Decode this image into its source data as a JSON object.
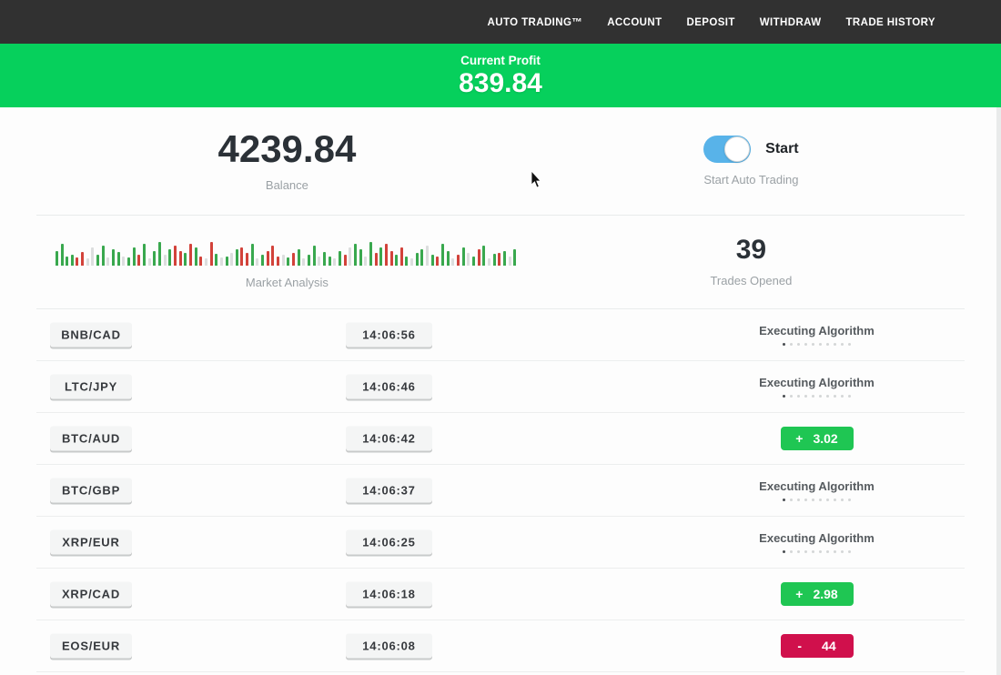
{
  "nav": {
    "items": [
      "AUTO TRADING™",
      "ACCOUNT",
      "DEPOSIT",
      "WITHDRAW",
      "TRADE HISTORY"
    ]
  },
  "banner": {
    "label": "Current Profit",
    "value": "839.84"
  },
  "stats": {
    "balance": {
      "value": "4239.84",
      "label": "Balance"
    },
    "auto_trading": {
      "toggle_state": "on",
      "toggle_label": "Start",
      "caption": "Start Auto Trading"
    },
    "market_analysis": {
      "label": "Market Analysis",
      "bars": [
        "g16",
        "g24",
        "g10",
        "g12",
        "r9",
        "r15",
        "e8",
        "e20",
        "g12",
        "g22",
        "e9",
        "g18",
        "g15",
        "e10",
        "g9",
        "g20",
        "r12",
        "g24",
        "e8",
        "g16",
        "g26",
        "e12",
        "g18",
        "r22",
        "r16",
        "g14",
        "r24",
        "g20",
        "r10",
        "e8",
        "r26",
        "g13",
        "e9",
        "g10",
        "e14",
        "g18",
        "r20",
        "r14",
        "g24",
        "e8",
        "g12",
        "r16",
        "r22",
        "r10",
        "e12",
        "g9",
        "r14",
        "g18",
        "e8",
        "g12",
        "g22",
        "e10",
        "g15",
        "g10",
        "e8",
        "g16",
        "r12",
        "e20",
        "g24",
        "g18",
        "e10",
        "g26",
        "r14",
        "g20",
        "r24",
        "r16",
        "g12",
        "r20",
        "g10",
        "e8",
        "g14",
        "g18",
        "e22",
        "g12",
        "r10",
        "g24",
        "g16",
        "e8",
        "r12",
        "g20",
        "e14",
        "g10",
        "r18",
        "g22",
        "e8",
        "g13",
        "r14",
        "g16",
        "e10",
        "g18"
      ]
    },
    "trades_opened": {
      "value": "39",
      "label": "Trades Opened"
    }
  },
  "trades": {
    "executing_label": "Executing Algorithm",
    "dots_total": 10,
    "dots_active": 1,
    "rows": [
      {
        "pair": "BNB/CAD",
        "time": "14:06:56",
        "status": "executing",
        "sign": "",
        "value": ""
      },
      {
        "pair": "LTC/JPY",
        "time": "14:06:46",
        "status": "executing",
        "sign": "",
        "value": ""
      },
      {
        "pair": "BTC/AUD",
        "time": "14:06:42",
        "status": "profit",
        "sign": "+",
        "value": "3.02"
      },
      {
        "pair": "BTC/GBP",
        "time": "14:06:37",
        "status": "executing",
        "sign": "",
        "value": ""
      },
      {
        "pair": "XRP/EUR",
        "time": "14:06:25",
        "status": "executing",
        "sign": "",
        "value": ""
      },
      {
        "pair": "XRP/CAD",
        "time": "14:06:18",
        "status": "profit",
        "sign": "+",
        "value": "2.98"
      },
      {
        "pair": "EOS/EUR",
        "time": "14:06:08",
        "status": "loss",
        "sign": "-",
        "value": "44"
      }
    ]
  },
  "colors": {
    "banner_green": "#06d05c",
    "badge_green": "#1fc653",
    "badge_red": "#d0104c",
    "toggle_blue": "#58b3e9",
    "bar_green": "#39a84e",
    "bar_red": "#d2423a",
    "bar_gray": "#dcdede",
    "nav_dark": "#313131"
  }
}
